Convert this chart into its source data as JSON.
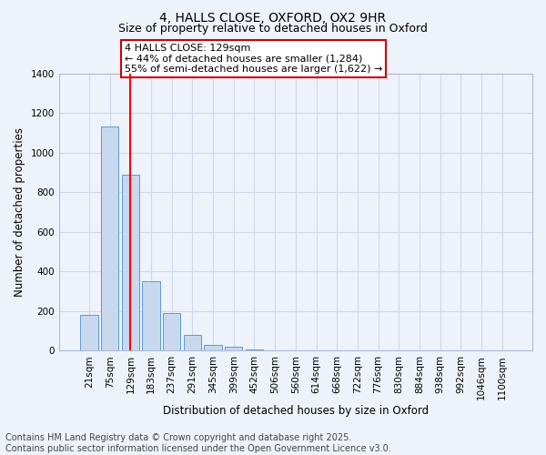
{
  "title1": "4, HALLS CLOSE, OXFORD, OX2 9HR",
  "title2": "Size of property relative to detached houses in Oxford",
  "xlabel": "Distribution of detached houses by size in Oxford",
  "ylabel": "Number of detached properties",
  "categories": [
    "21sqm",
    "75sqm",
    "129sqm",
    "183sqm",
    "237sqm",
    "291sqm",
    "345sqm",
    "399sqm",
    "452sqm",
    "506sqm",
    "560sqm",
    "614sqm",
    "668sqm",
    "722sqm",
    "776sqm",
    "830sqm",
    "884sqm",
    "938sqm",
    "992sqm",
    "1046sqm",
    "1100sqm"
  ],
  "values": [
    180,
    1130,
    890,
    350,
    190,
    80,
    30,
    20,
    5,
    0,
    0,
    0,
    0,
    0,
    0,
    0,
    0,
    0,
    0,
    0,
    0
  ],
  "bar_color": "#c8d8ee",
  "bar_edge_color": "#5b9bd5",
  "red_line_index": 2,
  "annotation_line1": "4 HALLS CLOSE: 129sqm",
  "annotation_line2": "← 44% of detached houses are smaller (1,284)",
  "annotation_line3": "55% of semi-detached houses are larger (1,622) →",
  "annotation_box_color": "#ffffff",
  "annotation_box_edge": "#cc0000",
  "ylim": [
    0,
    1400
  ],
  "yticks": [
    0,
    200,
    400,
    600,
    800,
    1000,
    1200,
    1400
  ],
  "footer1": "Contains HM Land Registry data © Crown copyright and database right 2025.",
  "footer2": "Contains public sector information licensed under the Open Government Licence v3.0.",
  "background_color": "#eef2fa",
  "grid_color": "#d0d8e8",
  "title_fontsize": 10,
  "subtitle_fontsize": 9,
  "axis_label_fontsize": 8.5,
  "tick_fontsize": 7.5,
  "footer_fontsize": 7,
  "ann_fontsize": 8
}
